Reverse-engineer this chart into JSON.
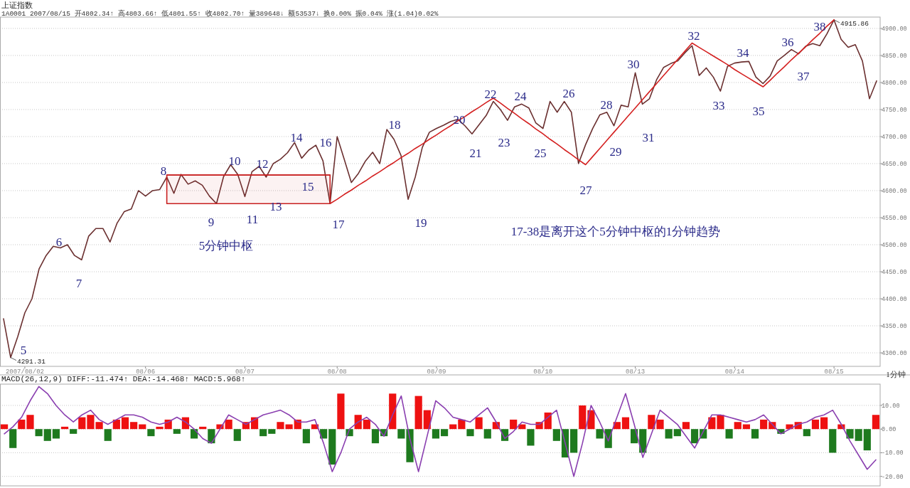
{
  "chart_data": [
    {
      "type": "line",
      "title": "上证指数",
      "subtitle": "1A0001 2007/08/15 开4802.34↑ 高4803.66↑ 低4801.55↑ 收4802.70↑ 量389648↓ 额53537↓ 换0.00% 振0.04% 涨(1.04)0.02%",
      "categories": [
        null,
        null,
        null,
        "2007/08/02",
        null,
        null,
        null,
        null,
        null,
        null,
        null,
        null,
        null,
        null,
        null,
        null,
        null,
        null,
        null,
        null,
        "08/06",
        null,
        null,
        null,
        null,
        null,
        null,
        null,
        null,
        null,
        null,
        null,
        null,
        null,
        "08/07",
        null,
        null,
        null,
        null,
        null,
        null,
        null,
        null,
        null,
        null,
        null,
        null,
        "08/08",
        null,
        null,
        null,
        null,
        null,
        null,
        null,
        null,
        null,
        null,
        null,
        null,
        null,
        "08/09",
        null,
        null,
        null,
        null,
        null,
        null,
        null,
        null,
        null,
        null,
        null,
        null,
        null,
        null,
        "08/10",
        null,
        null,
        null,
        null,
        null,
        null,
        null,
        null,
        null,
        null,
        null,
        null,
        "08/13",
        null,
        null,
        null,
        null,
        null,
        null,
        null,
        null,
        null,
        null,
        null,
        null,
        null,
        "08/14",
        null,
        null,
        null,
        null,
        null,
        null,
        null,
        null,
        null,
        null,
        null,
        null,
        null,
        "08/15",
        null,
        null,
        null,
        null,
        null,
        null
      ],
      "ylim": [
        4275,
        4921
      ],
      "yticks": [
        {
          "value": 4300,
          "label": "4300.00"
        },
        {
          "value": 4350,
          "label": "4350.00"
        },
        {
          "value": 4400,
          "label": "4400.00"
        },
        {
          "value": 4450,
          "label": "4450.00"
        },
        {
          "value": 4500,
          "label": "4500.00"
        },
        {
          "value": 4550,
          "label": "4550.00"
        },
        {
          "value": 4600,
          "label": "4600.00"
        },
        {
          "value": 4650,
          "label": "4650.00"
        },
        {
          "value": 4700,
          "label": "4700.00"
        },
        {
          "value": 4750,
          "label": "4750.00"
        },
        {
          "value": 4800,
          "label": "4800.00"
        },
        {
          "value": 4850,
          "label": "4850.00"
        },
        {
          "value": 4900,
          "label": "4900.00"
        }
      ],
      "grid": "y",
      "series": [
        {
          "color": "#6b3030",
          "values": [
            4363,
            4291.31,
            4330,
            4374,
            4400,
            4455,
            4480,
            4497,
            4494,
            4500,
            4480,
            4472,
            4516,
            4530,
            4530,
            4505,
            4540,
            4561,
            4566,
            4600,
            4590,
            4600,
            4602,
            4625,
            4595,
            4630,
            4612,
            4618,
            4610,
            4590,
            4576,
            4626,
            4648,
            4630,
            4589,
            4635,
            4645,
            4625,
            4650,
            4658,
            4670,
            4689,
            4660,
            4675,
            4684,
            4655,
            4576,
            4700,
            4658,
            4615,
            4632,
            4655,
            4671,
            4650,
            4713,
            4695,
            4665,
            4584,
            4625,
            4680,
            4708,
            4715,
            4721,
            4728,
            4732,
            4720,
            4705,
            4722,
            4739,
            4765,
            4750,
            4730,
            4755,
            4760,
            4753,
            4725,
            4715,
            4765,
            4745,
            4765,
            4745,
            4650,
            4685,
            4715,
            4740,
            4745,
            4720,
            4758,
            4755,
            4818,
            4760,
            4770,
            4805,
            4828,
            4835,
            4840,
            4855,
            4868,
            4813,
            4827,
            4810,
            4784,
            4830,
            4836,
            4838,
            4839,
            4810,
            4798,
            4812,
            4840,
            4850,
            4861,
            4853,
            4867,
            4872,
            4868,
            4890,
            4915.86,
            4880,
            4865,
            4870,
            4840,
            4770,
            4803
          ],
          "value_labels": [
            null,
            "4291.31",
            null,
            null,
            null,
            null,
            null,
            null,
            null,
            null,
            null,
            null,
            null,
            null,
            null,
            null,
            null,
            null,
            null,
            null,
            null,
            null,
            null,
            null,
            null,
            null,
            null,
            null,
            null,
            null,
            null,
            null,
            null,
            null,
            null,
            null,
            null,
            null,
            null,
            null,
            null,
            null,
            null,
            null,
            null,
            null,
            null,
            null,
            null,
            null,
            null,
            null,
            null,
            null,
            null,
            null,
            null,
            null,
            null,
            null,
            null,
            null,
            null,
            null,
            null,
            null,
            null,
            null,
            null,
            null,
            null,
            null,
            null,
            null,
            null,
            null,
            null,
            null,
            null,
            null,
            null,
            null,
            null,
            null,
            null,
            null,
            null,
            null,
            null,
            null,
            null,
            null,
            null,
            null,
            null,
            null,
            null,
            null,
            null,
            null,
            null,
            null,
            null,
            null,
            null,
            null,
            null,
            null,
            null,
            null,
            null,
            null,
            null,
            null,
            null,
            null,
            null,
            "4915.86",
            null,
            null,
            null,
            null,
            null,
            null
          ]
        },
        {
          "color": "#d42020",
          "values": [
            null,
            null,
            null,
            null,
            null,
            null,
            null,
            null,
            null,
            null,
            null,
            null,
            null,
            null,
            null,
            null,
            null,
            null,
            null,
            null,
            null,
            null,
            null,
            null,
            null,
            null,
            null,
            null,
            null,
            null,
            null,
            null,
            null,
            null,
            null,
            null,
            null,
            null,
            null,
            null,
            null,
            null,
            null,
            null,
            null,
            null,
            4576,
            4584,
            4593,
            4601,
            4610,
            4618,
            4627,
            4635,
            4644,
            4652,
            4661,
            4669,
            4678,
            4686,
            4695,
            4703,
            4712,
            4720,
            4729,
            4737,
            4746,
            4754,
            4763,
            4771,
            4762,
            4752,
            4743,
            4733,
            4724,
            4714,
            4705,
            4695,
            4686,
            4676,
            4667,
            4657,
            4648,
            4663,
            4678,
            4693,
            4708,
            4723,
            4738,
            4753,
            4768,
            4783,
            4798,
            4813,
            4828,
            4843,
            4858,
            4873,
            4865,
            4857,
            4849,
            4841,
            4833,
            4824,
            4816,
            4808,
            4800,
            4792,
            4804,
            4817,
            4829,
            4842,
            4854,
            4866,
            4879,
            4891,
            4904,
            4916,
            null,
            null,
            null,
            null,
            null,
            null
          ]
        },
        {
          "color": "#c82020",
          "values": [
            null,
            null,
            null,
            null,
            null,
            null,
            null,
            null,
            null,
            null,
            null,
            null,
            null,
            null,
            null,
            null,
            null,
            null,
            null,
            null,
            null,
            null,
            null,
            4629,
            4629,
            4629,
            4629,
            4629,
            4629,
            4629,
            4629,
            4629,
            4629,
            4629,
            4629,
            4629,
            4629,
            4629,
            4629,
            4629,
            4629,
            4629,
            4629,
            4629,
            4629,
            4629,
            4629,
            null,
            null,
            null,
            null,
            null,
            null,
            null,
            null,
            null,
            null,
            null,
            null,
            null,
            null,
            null,
            null,
            null,
            null,
            null,
            null,
            null,
            null,
            null,
            null,
            null,
            null,
            null,
            null,
            null,
            null,
            null,
            null,
            null,
            null,
            null,
            null,
            null,
            null,
            null,
            null,
            null,
            null,
            null,
            null,
            null,
            null,
            null,
            null,
            null,
            null,
            null,
            null,
            null,
            null,
            null,
            null,
            null,
            null,
            null,
            null,
            null,
            null,
            null,
            null,
            null,
            null,
            null,
            null,
            null,
            null,
            null,
            null,
            null,
            null,
            null,
            null,
            null
          ],
          "lower": [
            null,
            null,
            null,
            null,
            null,
            null,
            null,
            null,
            null,
            null,
            null,
            null,
            null,
            null,
            null,
            null,
            null,
            null,
            null,
            null,
            null,
            null,
            null,
            4576,
            4576,
            4576,
            4576,
            4576,
            4576,
            4576,
            4576,
            4576,
            4576,
            4576,
            4576,
            4576,
            4576,
            4576,
            4576,
            4576,
            4576,
            4576,
            4576,
            4576,
            4576,
            4576,
            4576,
            null,
            null,
            null,
            null,
            null,
            null,
            null,
            null,
            null,
            null,
            null,
            null,
            null,
            null,
            null,
            null,
            null,
            null,
            null,
            null,
            null,
            null,
            null,
            null,
            null,
            null,
            null,
            null,
            null,
            null,
            null,
            null,
            null,
            null,
            null,
            null,
            null,
            null,
            null,
            null,
            null,
            null,
            null,
            null,
            null,
            null,
            null,
            null,
            null,
            null,
            null,
            null,
            null,
            null,
            null,
            null,
            null,
            null,
            null,
            null,
            null,
            null,
            null,
            null,
            null,
            null,
            null,
            null,
            null,
            null,
            null,
            null,
            null,
            null,
            null,
            null,
            null
          ],
          "upper": [
            null,
            null,
            null,
            null,
            null,
            null,
            null,
            null,
            null,
            null,
            null,
            null,
            null,
            null,
            null,
            null,
            null,
            null,
            null,
            null,
            null,
            null,
            null,
            4629,
            4629,
            4629,
            4629,
            4629,
            4629,
            4629,
            4629,
            4629,
            4629,
            4629,
            4629,
            4629,
            4629,
            4629,
            4629,
            4629,
            4629,
            4629,
            4629,
            4629,
            4629,
            4629,
            4629,
            null,
            null,
            null,
            null,
            null,
            null,
            null,
            null,
            null,
            null,
            null,
            null,
            null,
            null,
            null,
            null,
            null,
            null,
            null,
            null,
            null,
            null,
            null,
            null,
            null,
            null,
            null,
            null,
            null,
            null,
            null,
            null,
            null,
            null,
            null,
            null,
            null,
            null,
            null,
            null,
            null,
            null,
            null,
            null,
            null,
            null,
            null,
            null,
            null,
            null,
            null,
            null,
            null,
            null,
            null,
            null,
            null,
            null,
            null,
            null,
            null,
            null,
            null,
            null,
            null,
            null,
            null,
            null,
            null,
            null,
            null,
            null,
            null,
            null,
            null,
            null,
            null
          ]
        }
      ],
      "annotations": [
        "5",
        "6",
        "7",
        "8",
        "9",
        "10",
        "11",
        "12",
        "13",
        "14",
        "15",
        "16",
        "17",
        "18",
        "19",
        "20",
        "21",
        "22",
        "23",
        "24",
        "25",
        "26",
        "27",
        "28",
        "29",
        "30",
        "31",
        "32",
        "33",
        "34",
        "35",
        "36",
        "37",
        "38",
        "5分钟中枢",
        "17-38是离开这个5分钟中枢的1分钟趋势",
        "1分钟"
      ]
    },
    {
      "type": "bar",
      "title": "MACD(26,12,9) DIFF:-11.474↑ DEA:-14.468↑ MACD:5.968↑",
      "categories": [
        null,
        null,
        null,
        null,
        null,
        null,
        null,
        null,
        null,
        null,
        null,
        null,
        null,
        null,
        null,
        null,
        null,
        null,
        null,
        null,
        null,
        null,
        null,
        null,
        null,
        null,
        null,
        null,
        null,
        null,
        null,
        null,
        null,
        null,
        null,
        null,
        null,
        null,
        null,
        null,
        null,
        null,
        null,
        null,
        null,
        null,
        null,
        null,
        null,
        null,
        null,
        null,
        null,
        null,
        null,
        null,
        null,
        null,
        null,
        null,
        null,
        null,
        null,
        null,
        null,
        null,
        null,
        null,
        null,
        null,
        null,
        null,
        null,
        null,
        null,
        null,
        null,
        null,
        null,
        null,
        null,
        null,
        null,
        null,
        null,
        null,
        null,
        null,
        null,
        null,
        null,
        null,
        null,
        null,
        null,
        null,
        null,
        null,
        null,
        null,
        null,
        null
      ],
      "ylim": [
        -24,
        19
      ],
      "yticks": [
        {
          "value": -20,
          "label": "-20.00"
        },
        {
          "value": -10,
          "label": "-10.00"
        },
        {
          "value": 0,
          "label": "0.00"
        },
        {
          "value": 10,
          "label": "10.00"
        }
      ],
      "grid": "y",
      "tick_labels": "y",
      "series": [
        {
          "values": [
            2,
            -8,
            4,
            6,
            -3,
            -5,
            -4,
            1,
            -2,
            5,
            6,
            3,
            -5,
            4,
            5,
            3,
            2,
            -3,
            1,
            4,
            -2,
            5,
            -4,
            1,
            -6,
            2,
            4,
            -5,
            3,
            5,
            -3,
            -2,
            3,
            2,
            4,
            -6,
            2,
            -4,
            -15,
            15,
            -3,
            6,
            4,
            -6,
            -3,
            15,
            -4,
            -14,
            14,
            8,
            -4,
            -3,
            2,
            4,
            -3,
            5,
            -4,
            3,
            -5,
            4,
            2,
            -7,
            3,
            7,
            -5,
            -12,
            -10,
            10,
            8,
            -4,
            -8,
            3,
            5,
            -6,
            -10,
            6,
            4,
            -4,
            -3,
            3,
            -6,
            -4,
            5,
            6,
            -4,
            3,
            2,
            -4,
            4,
            3,
            -2,
            2,
            3,
            -3,
            4,
            5,
            -10,
            2,
            -4,
            -5,
            -9,
            6
          ],
          "colors": [
            "#ee1111",
            "#1e7a1e",
            "#ee1111",
            "#ee1111",
            "#1e7a1e",
            "#1e7a1e",
            "#1e7a1e",
            "#ee1111",
            "#1e7a1e",
            "#ee1111",
            "#ee1111",
            "#ee1111",
            "#1e7a1e",
            "#ee1111",
            "#ee1111",
            "#ee1111",
            "#ee1111",
            "#1e7a1e",
            "#ee1111",
            "#ee1111",
            "#1e7a1e",
            "#ee1111",
            "#1e7a1e",
            "#ee1111",
            "#1e7a1e",
            "#ee1111",
            "#ee1111",
            "#1e7a1e",
            "#ee1111",
            "#ee1111",
            "#1e7a1e",
            "#1e7a1e",
            "#ee1111",
            "#ee1111",
            "#ee1111",
            "#1e7a1e",
            "#ee1111",
            "#1e7a1e",
            "#1e7a1e",
            "#ee1111",
            "#1e7a1e",
            "#ee1111",
            "#ee1111",
            "#1e7a1e",
            "#1e7a1e",
            "#ee1111",
            "#1e7a1e",
            "#1e7a1e",
            "#ee1111",
            "#ee1111",
            "#1e7a1e",
            "#1e7a1e",
            "#ee1111",
            "#ee1111",
            "#1e7a1e",
            "#ee1111",
            "#1e7a1e",
            "#ee1111",
            "#1e7a1e",
            "#ee1111",
            "#ee1111",
            "#1e7a1e",
            "#ee1111",
            "#ee1111",
            "#1e7a1e",
            "#1e7a1e",
            "#1e7a1e",
            "#ee1111",
            "#ee1111",
            "#1e7a1e",
            "#1e7a1e",
            "#ee1111",
            "#ee1111",
            "#1e7a1e",
            "#1e7a1e",
            "#ee1111",
            "#ee1111",
            "#1e7a1e",
            "#1e7a1e",
            "#ee1111",
            "#1e7a1e",
            "#1e7a1e",
            "#ee1111",
            "#ee1111",
            "#1e7a1e",
            "#ee1111",
            "#ee1111",
            "#1e7a1e",
            "#ee1111",
            "#ee1111",
            "#1e7a1e",
            "#ee1111",
            "#ee1111",
            "#1e7a1e",
            "#ee1111",
            "#ee1111",
            "#1e7a1e",
            "#ee1111",
            "#1e7a1e",
            "#1e7a1e",
            "#1e7a1e",
            "#ee1111"
          ]
        },
        {
          "type": "line",
          "color": "#8a3fb0",
          "values": [
            -2,
            1,
            5,
            12,
            18,
            15,
            10,
            6,
            3,
            6,
            8,
            4,
            2,
            4,
            6,
            6,
            5,
            3,
            2,
            3,
            5,
            3,
            0,
            -4,
            -6,
            0,
            6,
            4,
            2,
            4,
            6,
            7,
            8,
            6,
            3,
            3,
            4,
            -6,
            -18,
            -10,
            0,
            3,
            5,
            2,
            -3,
            6,
            14,
            -4,
            -18,
            -3,
            12,
            9,
            5,
            4,
            3,
            6,
            9,
            3,
            -4,
            -1,
            3,
            2,
            2,
            5,
            8,
            -6,
            -20,
            -6,
            10,
            3,
            -5,
            5,
            15,
            2,
            -12,
            -2,
            8,
            5,
            2,
            -3,
            -8,
            -1,
            6,
            6,
            5,
            4,
            3,
            4,
            6,
            2,
            -2,
            0,
            2,
            3,
            5,
            6,
            8,
            2,
            -5,
            -11,
            -17,
            -13
          ]
        }
      ]
    }
  ]
}
